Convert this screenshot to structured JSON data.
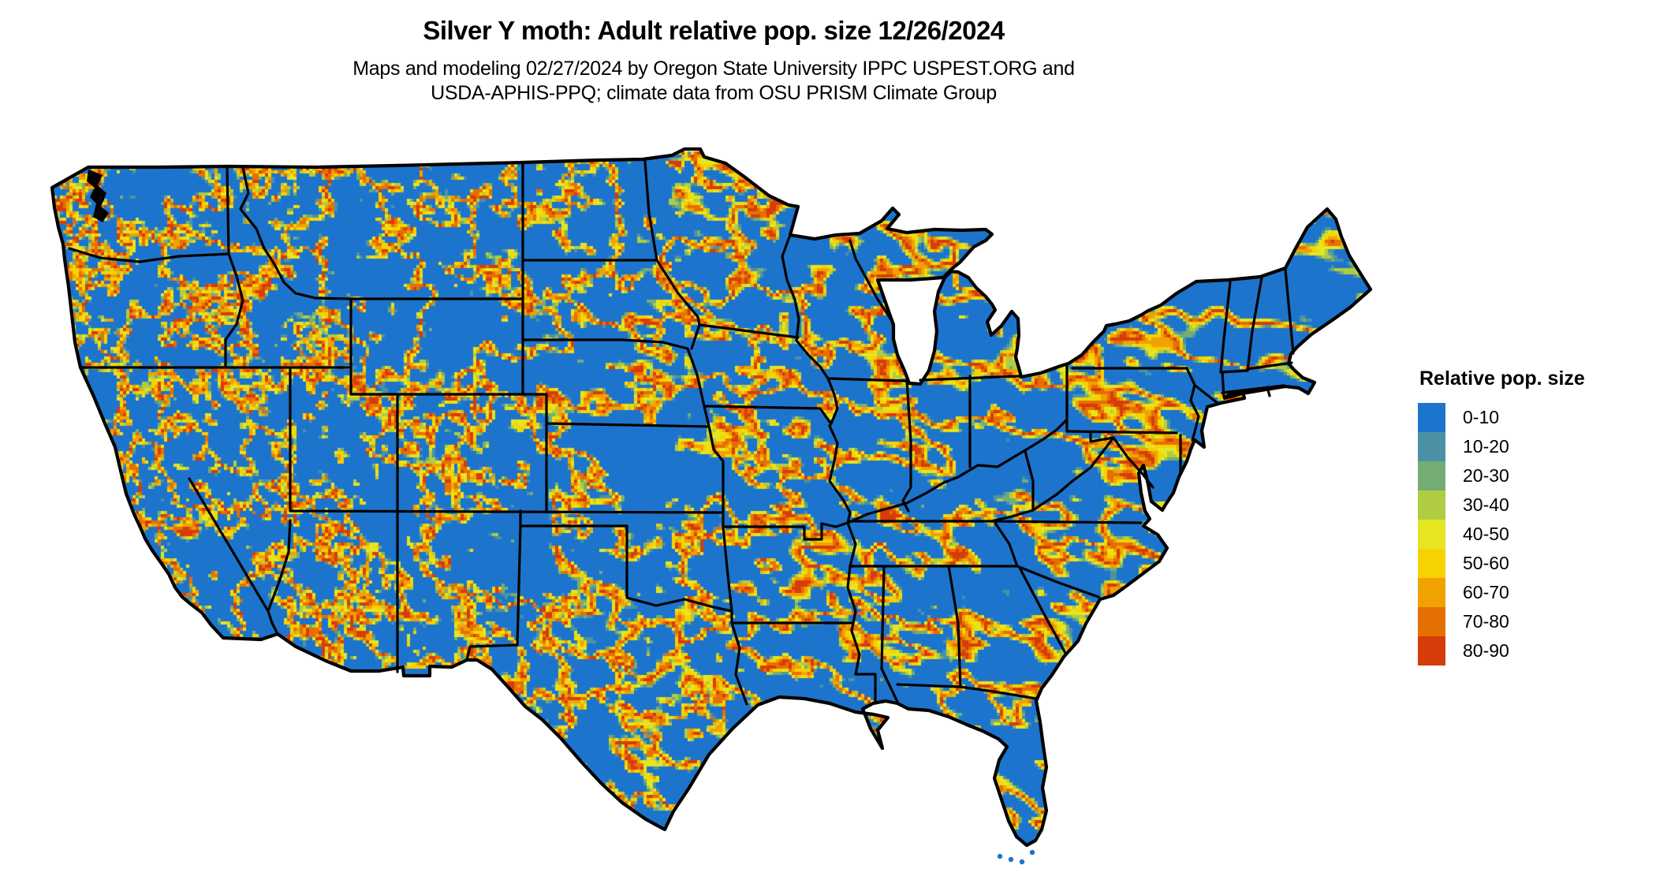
{
  "header": {
    "title": "Silver Y moth: Adult relative pop. size 12/26/2024",
    "subtitle_line1": "Maps and modeling 02/27/2024 by Oregon State University IPPC USPEST.ORG and",
    "subtitle_line2": "USDA-APHIS-PPQ; climate data from OSU PRISM Climate Group"
  },
  "legend": {
    "title": "Relative pop. size",
    "items": [
      {
        "label": "0-10",
        "color": "#1d74cc"
      },
      {
        "label": "10-20",
        "color": "#4b92a6"
      },
      {
        "label": "20-30",
        "color": "#74ad73"
      },
      {
        "label": "30-40",
        "color": "#b0cc42"
      },
      {
        "label": "40-50",
        "color": "#e6e521"
      },
      {
        "label": "50-60",
        "color": "#f6d200"
      },
      {
        "label": "60-70",
        "color": "#f0a202"
      },
      {
        "label": "70-80",
        "color": "#e66f02"
      },
      {
        "label": "80-90",
        "color": "#d63c0a"
      }
    ]
  },
  "map": {
    "region": "Continental United States",
    "base_color": "#1d74cc",
    "state_border_color": "#000000",
    "water_background_color": "#ffffff"
  }
}
